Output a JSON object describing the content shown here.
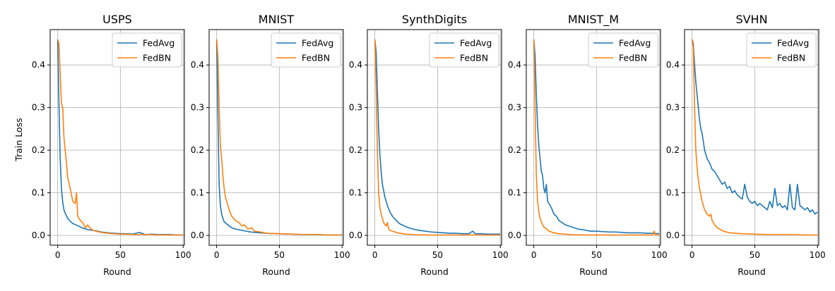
{
  "figure": {
    "ylabel": "Train Loss",
    "colors": {
      "FedAvg": "#1f77b4",
      "FedBN": "#ff7f0e",
      "grid": "#b0b0b0"
    },
    "legend_placement": "upper right",
    "grid": true
  },
  "chart_data": [
    {
      "type": "line",
      "title": "USPS",
      "xlabel": "Round",
      "ylabel": "Train Loss",
      "xlim": [
        -6,
        101
      ],
      "ylim": [
        -0.023,
        0.483
      ],
      "xticks": [
        0,
        50,
        100
      ],
      "yticks": [
        0.0,
        0.1,
        0.2,
        0.3,
        0.4
      ],
      "series": [
        {
          "name": "FedAvg",
          "x": [
            0,
            1,
            2,
            3,
            4,
            5,
            6,
            7,
            8,
            10,
            12,
            15,
            18,
            20,
            25,
            30,
            35,
            40,
            45,
            50,
            55,
            60,
            65,
            70,
            75,
            80,
            85,
            90,
            95,
            100
          ],
          "y": [
            0.46,
            0.31,
            0.18,
            0.11,
            0.078,
            0.06,
            0.052,
            0.046,
            0.04,
            0.033,
            0.028,
            0.024,
            0.02,
            0.017,
            0.013,
            0.011,
            0.008,
            0.006,
            0.005,
            0.004,
            0.004,
            0.003,
            0.007,
            0.002,
            0.003,
            0.002,
            0.002,
            0.002,
            0.001,
            0.001
          ]
        },
        {
          "name": "FedBN",
          "x": [
            0,
            1,
            2,
            3,
            4,
            5,
            6,
            7,
            8,
            10,
            12,
            14,
            15,
            16,
            18,
            20,
            22,
            24,
            25,
            27,
            30,
            35,
            40,
            45,
            50,
            55,
            60,
            65,
            70,
            75,
            80,
            85,
            90,
            95,
            100
          ],
          "y": [
            0.46,
            0.45,
            0.38,
            0.31,
            0.3,
            0.23,
            0.2,
            0.17,
            0.135,
            0.11,
            0.08,
            0.075,
            0.1,
            0.045,
            0.035,
            0.03,
            0.018,
            0.025,
            0.02,
            0.014,
            0.01,
            0.007,
            0.005,
            0.004,
            0.003,
            0.003,
            0.002,
            0.002,
            0.002,
            0.002,
            0.001,
            0.001,
            0.001,
            0.001,
            0.001
          ]
        }
      ]
    },
    {
      "type": "line",
      "title": "MNIST",
      "xlabel": "Round",
      "xlim": [
        -6,
        101
      ],
      "ylim": [
        -0.023,
        0.483
      ],
      "xticks": [
        0,
        50,
        100
      ],
      "yticks": [
        0.0,
        0.1,
        0.2,
        0.3,
        0.4
      ],
      "series": [
        {
          "name": "FedAvg",
          "x": [
            0,
            1,
            2,
            3,
            4,
            5,
            6,
            8,
            10,
            12,
            15,
            20,
            25,
            30,
            40,
            50,
            60,
            70,
            80,
            90,
            100
          ],
          "y": [
            0.46,
            0.28,
            0.12,
            0.07,
            0.05,
            0.04,
            0.032,
            0.027,
            0.022,
            0.018,
            0.015,
            0.012,
            0.009,
            0.007,
            0.005,
            0.004,
            0.003,
            0.002,
            0.002,
            0.001,
            0.001
          ]
        },
        {
          "name": "FedBN",
          "x": [
            0,
            1,
            2,
            3,
            4,
            5,
            6,
            7,
            8,
            10,
            12,
            15,
            18,
            20,
            22,
            25,
            28,
            30,
            35,
            40,
            50,
            60,
            70,
            80,
            90,
            100
          ],
          "y": [
            0.46,
            0.42,
            0.3,
            0.21,
            0.18,
            0.14,
            0.11,
            0.09,
            0.08,
            0.06,
            0.045,
            0.035,
            0.03,
            0.022,
            0.025,
            0.015,
            0.018,
            0.01,
            0.008,
            0.005,
            0.004,
            0.003,
            0.002,
            0.002,
            0.001,
            0.001
          ]
        }
      ]
    },
    {
      "type": "line",
      "title": "SynthDigits",
      "xlabel": "Round",
      "xlim": [
        -6,
        101
      ],
      "ylim": [
        -0.023,
        0.483
      ],
      "xticks": [
        0,
        50,
        100
      ],
      "yticks": [
        0.0,
        0.1,
        0.2,
        0.3,
        0.4
      ],
      "series": [
        {
          "name": "FedAvg",
          "x": [
            0,
            1,
            2,
            3,
            4,
            5,
            6,
            7,
            8,
            10,
            12,
            14,
            16,
            18,
            20,
            25,
            30,
            35,
            40,
            45,
            50,
            55,
            60,
            65,
            70,
            75,
            78,
            80,
            85,
            90,
            95,
            100
          ],
          "y": [
            0.46,
            0.43,
            0.34,
            0.25,
            0.19,
            0.15,
            0.12,
            0.105,
            0.09,
            0.07,
            0.055,
            0.045,
            0.038,
            0.032,
            0.027,
            0.02,
            0.015,
            0.012,
            0.01,
            0.008,
            0.007,
            0.006,
            0.005,
            0.005,
            0.004,
            0.004,
            0.01,
            0.004,
            0.004,
            0.003,
            0.003,
            0.003
          ]
        },
        {
          "name": "FedBN",
          "x": [
            0,
            1,
            2,
            3,
            4,
            5,
            6,
            7,
            8,
            9,
            10,
            11,
            12,
            14,
            16,
            18,
            20,
            25,
            30,
            40,
            50,
            60,
            70,
            80,
            90,
            100
          ],
          "y": [
            0.46,
            0.35,
            0.2,
            0.1,
            0.065,
            0.05,
            0.04,
            0.03,
            0.025,
            0.022,
            0.03,
            0.015,
            0.012,
            0.01,
            0.008,
            0.006,
            0.005,
            0.003,
            0.002,
            0.001,
            0.001,
            0.001,
            0.001,
            0.001,
            0.001,
            0.001
          ]
        }
      ]
    },
    {
      "type": "line",
      "title": "MNIST_M",
      "xlabel": "Round",
      "xlim": [
        -6,
        101
      ],
      "ylim": [
        -0.023,
        0.483
      ],
      "xticks": [
        0,
        50,
        100
      ],
      "yticks": [
        0.0,
        0.1,
        0.2,
        0.3,
        0.4
      ],
      "series": [
        {
          "name": "FedAvg",
          "x": [
            0,
            1,
            2,
            3,
            4,
            5,
            6,
            7,
            8,
            9,
            10,
            11,
            12,
            14,
            16,
            18,
            20,
            25,
            30,
            35,
            40,
            45,
            50,
            55,
            60,
            65,
            70,
            75,
            80,
            85,
            90,
            95,
            100
          ],
          "y": [
            0.46,
            0.42,
            0.33,
            0.26,
            0.21,
            0.18,
            0.15,
            0.14,
            0.11,
            0.1,
            0.12,
            0.08,
            0.075,
            0.065,
            0.05,
            0.045,
            0.035,
            0.025,
            0.02,
            0.015,
            0.013,
            0.01,
            0.01,
            0.009,
            0.008,
            0.008,
            0.007,
            0.006,
            0.006,
            0.006,
            0.005,
            0.005,
            0.004
          ]
        },
        {
          "name": "FedBN",
          "x": [
            0,
            1,
            2,
            3,
            4,
            5,
            6,
            7,
            8,
            10,
            12,
            14,
            16,
            18,
            20,
            25,
            30,
            40,
            50,
            60,
            70,
            80,
            90,
            95,
            96,
            97,
            100
          ],
          "y": [
            0.46,
            0.3,
            0.14,
            0.08,
            0.055,
            0.04,
            0.032,
            0.025,
            0.02,
            0.015,
            0.01,
            0.008,
            0.006,
            0.005,
            0.004,
            0.003,
            0.002,
            0.001,
            0.001,
            0.001,
            0.001,
            0.001,
            0.001,
            0.001,
            0.01,
            0.001,
            0.001
          ]
        }
      ]
    },
    {
      "type": "line",
      "title": "SVHN",
      "xlabel": "Round",
      "xlim": [
        -6,
        101
      ],
      "ylim": [
        -0.023,
        0.483
      ],
      "xticks": [
        0,
        50,
        100
      ],
      "yticks": [
        0.0,
        0.1,
        0.2,
        0.3,
        0.4
      ],
      "series": [
        {
          "name": "FedAvg",
          "x": [
            0,
            1,
            2,
            3,
            4,
            5,
            6,
            7,
            8,
            9,
            10,
            12,
            14,
            16,
            18,
            20,
            22,
            24,
            26,
            28,
            30,
            32,
            34,
            36,
            38,
            40,
            42,
            44,
            46,
            48,
            50,
            52,
            54,
            56,
            58,
            60,
            62,
            64,
            66,
            68,
            70,
            72,
            74,
            76,
            78,
            80,
            82,
            84,
            86,
            88,
            90,
            92,
            94,
            96,
            98,
            100
          ],
          "y": [
            0.46,
            0.45,
            0.4,
            0.36,
            0.33,
            0.3,
            0.27,
            0.25,
            0.24,
            0.22,
            0.2,
            0.18,
            0.17,
            0.155,
            0.15,
            0.14,
            0.13,
            0.12,
            0.125,
            0.11,
            0.115,
            0.1,
            0.105,
            0.095,
            0.09,
            0.085,
            0.12,
            0.09,
            0.08,
            0.075,
            0.08,
            0.07,
            0.075,
            0.07,
            0.065,
            0.06,
            0.08,
            0.065,
            0.11,
            0.07,
            0.075,
            0.065,
            0.07,
            0.06,
            0.12,
            0.065,
            0.06,
            0.12,
            0.07,
            0.065,
            0.06,
            0.065,
            0.055,
            0.06,
            0.05,
            0.055
          ]
        },
        {
          "name": "FedBN",
          "x": [
            0,
            1,
            2,
            3,
            4,
            5,
            6,
            7,
            8,
            10,
            12,
            14,
            15,
            16,
            18,
            20,
            25,
            30,
            35,
            40,
            50,
            60,
            70,
            80,
            90,
            100
          ],
          "y": [
            0.46,
            0.44,
            0.3,
            0.2,
            0.16,
            0.13,
            0.11,
            0.095,
            0.08,
            0.06,
            0.05,
            0.045,
            0.05,
            0.035,
            0.025,
            0.018,
            0.01,
            0.006,
            0.005,
            0.004,
            0.003,
            0.002,
            0.002,
            0.002,
            0.001,
            0.001
          ]
        }
      ]
    }
  ]
}
